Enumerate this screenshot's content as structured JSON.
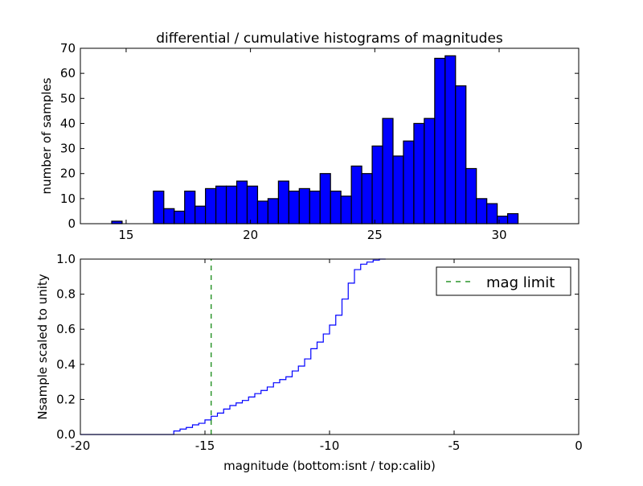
{
  "chart_data": [
    {
      "type": "bar",
      "title": "differential / cumulative histograms of magnitudes",
      "xlabel": "",
      "ylabel": "number of samples",
      "xlim": [
        13.16,
        33.2
      ],
      "ylim": [
        0,
        70
      ],
      "xticks": [
        15,
        20,
        25,
        30
      ],
      "yticks": [
        0,
        10,
        20,
        30,
        40,
        50,
        60,
        70
      ],
      "bin_start": 14.42,
      "bin_width": 0.419,
      "values": [
        1,
        0,
        0,
        0,
        13,
        6,
        5,
        13,
        7,
        14,
        15,
        15,
        17,
        15,
        9,
        10,
        17,
        13,
        14,
        13,
        20,
        13,
        11,
        23,
        20,
        31,
        42,
        27,
        33,
        40,
        42,
        66,
        67,
        55,
        22,
        10,
        8,
        3,
        4
      ],
      "color": "#0000ff"
    },
    {
      "type": "line",
      "xlabel": "magnitude (bottom:isnt / top:calib)",
      "ylabel": "Nsample scaled to unity",
      "xlim": [
        -20,
        0
      ],
      "ylim": [
        0,
        1
      ],
      "xticks": [
        -20,
        -15,
        -10,
        -5,
        0
      ],
      "yticks": [
        "0.0",
        "0.2",
        "0.4",
        "0.6",
        "0.8",
        "1.0"
      ],
      "step_start": -16.25,
      "step_width": 0.25,
      "values": [
        0.02,
        0.031,
        0.04,
        0.055,
        0.064,
        0.083,
        0.104,
        0.122,
        0.145,
        0.165,
        0.18,
        0.194,
        0.214,
        0.233,
        0.251,
        0.271,
        0.295,
        0.313,
        0.329,
        0.362,
        0.39,
        0.431,
        0.489,
        0.527,
        0.573,
        0.624,
        0.68,
        0.772,
        0.863,
        0.94,
        0.971,
        0.983,
        0.994,
        1.0
      ],
      "line_color": "#0000ff",
      "mag_limit": -14.75,
      "mag_limit_color": "#007f00",
      "legend": {
        "label": "mag limit",
        "placement": "top-right"
      }
    }
  ]
}
